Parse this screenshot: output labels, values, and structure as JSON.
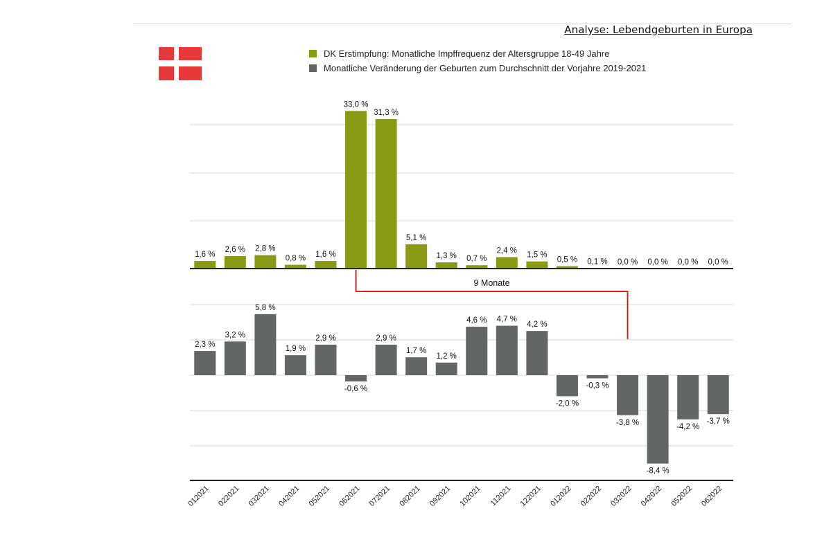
{
  "header": {
    "title": "Analyse: Lebendgeburten in Europa"
  },
  "colors": {
    "vaccination": "#8b9a14",
    "births": "#636666",
    "bracket": "#d9231e",
    "flag_red": "#e8393a",
    "grid": "#d4d4d4"
  },
  "icons": {
    "flag": "denmark-flag-icon"
  },
  "chart_data": [
    {
      "type": "bar",
      "name": "DK Erstimpfung: Monatliche Impffrequenz der Altersgruppe 18-49 Jahre",
      "categories": [
        "012021",
        "022021",
        "032021",
        "042021",
        "052021",
        "062021",
        "072021",
        "082021",
        "092021",
        "102021",
        "112021",
        "122021",
        "012022",
        "022022",
        "032022",
        "042022",
        "052022",
        "062022"
      ],
      "values": [
        1.6,
        2.6,
        2.8,
        0.8,
        1.6,
        33.0,
        31.3,
        5.1,
        1.3,
        0.7,
        2.4,
        1.5,
        0.5,
        0.1,
        0.0,
        0.0,
        0.0,
        0.0
      ],
      "labels": [
        "1,6 %",
        "2,6 %",
        "2,8 %",
        "0,8 %",
        "1,6 %",
        "33,0 %",
        "31,3 %",
        "5,1 %",
        "1,3 %",
        "0,7 %",
        "2,4 %",
        "1,5 %",
        "0,5 %",
        "0,1 %",
        "0,0 %",
        "0,0 %",
        "0,0 %",
        "0,0 %"
      ],
      "ylim": [
        0,
        36
      ],
      "grid": true
    },
    {
      "type": "bar",
      "name": "Monatliche Veränderung der Geburten zum Durchschnitt der Vorjahre 2019-2021",
      "categories": [
        "012021",
        "022021",
        "032021",
        "042021",
        "052021",
        "062021",
        "072021",
        "082021",
        "092021",
        "102021",
        "112021",
        "122021",
        "012022",
        "022022",
        "032022",
        "042022",
        "052022",
        "062022"
      ],
      "values": [
        2.3,
        3.2,
        5.8,
        1.9,
        2.9,
        -0.6,
        2.9,
        1.7,
        1.2,
        4.6,
        4.7,
        4.2,
        -2.0,
        -0.3,
        -3.8,
        -8.4,
        -4.2,
        -3.7
      ],
      "labels": [
        "2,3 %",
        "3,2 %",
        "5,8 %",
        "1,9 %",
        "2,9 %",
        "-0,6 %",
        "2,9 %",
        "1,7 %",
        "1,2 %",
        "4,6 %",
        "4,7 %",
        "4,2 %",
        "-2,0 %",
        "-0,3 %",
        "-3,8 %",
        "-8,4 %",
        "-4,2 %",
        "-3,7 %"
      ],
      "ylim": [
        -10,
        10
      ],
      "grid": true
    }
  ],
  "legend": [
    {
      "label": "DK Erstimpfung: Monatliche Impffrequenz der Altersgruppe 18-49 Jahre",
      "color": "#8b9a14"
    },
    {
      "label": "Monatliche Veränderung der Geburten zum Durchschnitt der Vorjahre 2019-2021",
      "color": "#636666"
    }
  ],
  "annotation": {
    "label": "9 Monate",
    "from": "062021",
    "to": "032022"
  }
}
